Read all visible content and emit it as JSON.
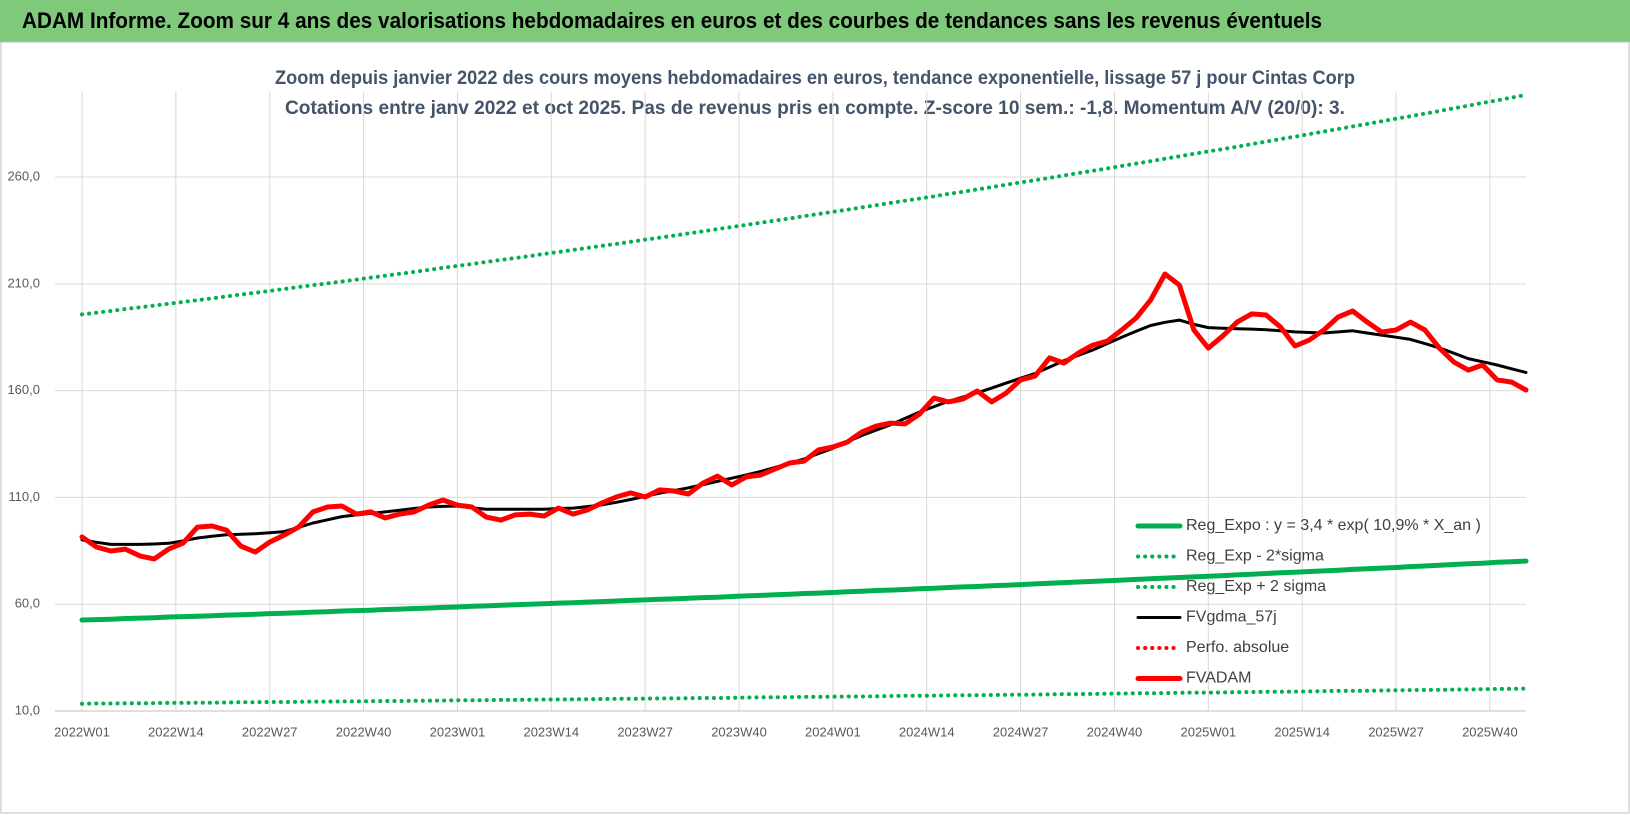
{
  "header": {
    "title": "ADAM Informe. Zoom sur 4 ans des valorisations hebdomadaires en euros et des courbes de tendances sans les revenus éventuels"
  },
  "chart_data": {
    "type": "line",
    "title": "Zoom depuis janvier 2022 des cours moyens hebdomadaires en euros, tendance exponentielle, lissage 57 j pour Cintas Corp",
    "subtitle": "Cotations entre janv 2022 et oct 2025. Pas de revenus pris en compte. Z-score 10 sem.: -1,8.  Momentum A/V (20/0): 3.",
    "grid": true,
    "legend": "lower right",
    "xlim": [
      0,
      200
    ],
    "ylim": [
      10,
      300
    ],
    "xticks": [
      {
        "value": 0,
        "label": "2022W01"
      },
      {
        "value": 13,
        "label": "2022W14"
      },
      {
        "value": 26,
        "label": "2022W27"
      },
      {
        "value": 39,
        "label": "2022W40"
      },
      {
        "value": 52,
        "label": "2023W01"
      },
      {
        "value": 65,
        "label": "2023W14"
      },
      {
        "value": 78,
        "label": "2023W27"
      },
      {
        "value": 91,
        "label": "2023W40"
      },
      {
        "value": 104,
        "label": "2024W01"
      },
      {
        "value": 117,
        "label": "2024W14"
      },
      {
        "value": 130,
        "label": "2024W27"
      },
      {
        "value": 143,
        "label": "2024W40"
      },
      {
        "value": 156,
        "label": "2025W01"
      },
      {
        "value": 169,
        "label": "2025W14"
      },
      {
        "value": 182,
        "label": "2025W27"
      },
      {
        "value": 195,
        "label": "2025W40"
      }
    ],
    "yticks": [
      {
        "value": 10,
        "label": "10,0"
      },
      {
        "value": 60,
        "label": "60,0"
      },
      {
        "value": 110,
        "label": "110,0"
      },
      {
        "value": 160,
        "label": "160,0"
      },
      {
        "value": 210,
        "label": "210,0"
      },
      {
        "value": 260,
        "label": "260,0"
      }
    ],
    "x": [
      0,
      2,
      4,
      6,
      8,
      10,
      12,
      14,
      16,
      18,
      20,
      22,
      24,
      26,
      28,
      30,
      32,
      34,
      36,
      38,
      40,
      42,
      44,
      46,
      48,
      50,
      52,
      54,
      56,
      58,
      60,
      62,
      64,
      66,
      68,
      70,
      72,
      74,
      76,
      78,
      80,
      82,
      84,
      86,
      88,
      90,
      92,
      94,
      96,
      98,
      100,
      102,
      104,
      106,
      108,
      110,
      112,
      114,
      116,
      118,
      120,
      122,
      124,
      126,
      128,
      130,
      132,
      134,
      136,
      138,
      140,
      142,
      144,
      146,
      148,
      150,
      152,
      154,
      156,
      158,
      160,
      162,
      164,
      166,
      168,
      170,
      172,
      174,
      176,
      178,
      180,
      182,
      184,
      186,
      188,
      190,
      192,
      194,
      196,
      198,
      200
    ],
    "series": [
      {
        "name": "Reg_Expo : y = 3,4 * exp( 10,9% * X_an )",
        "color": "#00b050",
        "style": "solid",
        "values": [
          52.6,
          52.8,
          53.0,
          53.3,
          53.5,
          53.7,
          54.0,
          54.2,
          54.4,
          54.6,
          54.9,
          55.1,
          55.3,
          55.6,
          55.8,
          56.0,
          56.3,
          56.5,
          56.8,
          57.0,
          57.2,
          57.5,
          57.7,
          58.0,
          58.2,
          58.5,
          58.7,
          59.0,
          59.2,
          59.5,
          59.7,
          60.0,
          60.2,
          60.5,
          60.7,
          61.0,
          61.2,
          61.5,
          61.8,
          62.0,
          62.3,
          62.5,
          62.8,
          63.1,
          63.3,
          63.6,
          63.9,
          64.1,
          64.4,
          64.7,
          65.0,
          65.2,
          65.5,
          65.8,
          66.1,
          66.4,
          66.6,
          66.9,
          67.2,
          67.5,
          67.8,
          68.1,
          68.3,
          68.6,
          68.9,
          69.2,
          69.5,
          69.8,
          70.1,
          70.4,
          70.7,
          71.0,
          71.3,
          71.6,
          71.9,
          72.2,
          72.5,
          72.8,
          73.1,
          73.4,
          73.7,
          74.0,
          74.4,
          74.7,
          75.0,
          75.3,
          75.6,
          75.9,
          76.3,
          76.6,
          76.9,
          77.2,
          77.6,
          77.9,
          78.2,
          78.6,
          78.9,
          79.2,
          79.6,
          79.9,
          80.2
        ]
      },
      {
        "name": "Reg_Exp - 2*sigma",
        "color": "#00b050",
        "style": "dotted",
        "values": [
          13.4,
          13.5,
          13.5,
          13.6,
          13.6,
          13.7,
          13.8,
          13.8,
          13.9,
          13.9,
          14.0,
          14.1,
          14.1,
          14.2,
          14.2,
          14.3,
          14.4,
          14.4,
          14.5,
          14.5,
          14.6,
          14.7,
          14.7,
          14.8,
          14.8,
          14.9,
          15.0,
          15.0,
          15.1,
          15.2,
          15.2,
          15.3,
          15.4,
          15.4,
          15.5,
          15.5,
          15.6,
          15.7,
          15.7,
          15.8,
          15.9,
          15.9,
          16.0,
          16.1,
          16.1,
          16.2,
          16.3,
          16.4,
          16.4,
          16.5,
          16.6,
          16.6,
          16.7,
          16.8,
          16.8,
          16.9,
          17.0,
          17.1,
          17.1,
          17.2,
          17.3,
          17.4,
          17.4,
          17.5,
          17.6,
          17.6,
          17.7,
          17.8,
          17.9,
          17.9,
          18.0,
          18.1,
          18.2,
          18.3,
          18.3,
          18.4,
          18.5,
          18.6,
          18.6,
          18.7,
          18.8,
          18.9,
          19.0,
          19.0,
          19.1,
          19.2,
          19.3,
          19.4,
          19.4,
          19.5,
          19.6,
          19.7,
          19.8,
          19.9,
          19.9,
          20.0,
          20.1,
          20.2,
          20.3,
          20.4,
          20.5
        ]
      },
      {
        "name": "Reg_Exp + 2 sigma",
        "color": "#00b050",
        "style": "dotted",
        "values": [
          195.7,
          196.5,
          197.3,
          198.2,
          199.0,
          199.8,
          200.7,
          201.5,
          202.4,
          203.2,
          204.1,
          205.0,
          205.8,
          206.7,
          207.6,
          208.5,
          209.4,
          210.2,
          211.1,
          212.0,
          212.9,
          213.8,
          214.7,
          215.6,
          216.5,
          217.5,
          218.4,
          219.3,
          220.2,
          221.2,
          222.1,
          223.0,
          224.0,
          224.9,
          225.9,
          226.8,
          227.8,
          228.7,
          229.7,
          230.7,
          231.6,
          232.6,
          233.6,
          234.6,
          235.6,
          236.6,
          237.6,
          238.6,
          239.6,
          240.6,
          241.7,
          242.7,
          243.7,
          244.7,
          245.8,
          246.8,
          247.9,
          248.9,
          249.9,
          251.0,
          252.1,
          253.1,
          254.2,
          255.3,
          256.4,
          257.5,
          258.5,
          259.6,
          260.7,
          261.9,
          262.9,
          264.0,
          265.2,
          266.3,
          267.4,
          268.6,
          269.7,
          270.9,
          272.0,
          273.1,
          274.2,
          275.4,
          276.6,
          277.8,
          278.9,
          280.1,
          281.3,
          282.5,
          283.7,
          284.9,
          286.1,
          287.3,
          288.5,
          289.7,
          290.9,
          292.2,
          293.4,
          294.7,
          295.9,
          297.2,
          298.4
        ]
      },
      {
        "name": "FVgdma_57j",
        "color": "#000000",
        "style": "solid",
        "values": [
          90.1,
          89,
          88,
          88,
          88,
          88.2,
          88.5,
          89.7,
          91,
          91.8,
          92.5,
          92.8,
          93,
          93.5,
          94,
          96,
          98,
          99.5,
          101,
          101.8,
          102.5,
          103.2,
          104,
          104.8,
          105.5,
          105.8,
          106,
          105.2,
          104.5,
          104.5,
          104.5,
          104.5,
          104.5,
          104.8,
          105,
          105.7,
          106.5,
          107.7,
          109,
          110.5,
          112,
          113.2,
          114.5,
          116,
          117.5,
          119,
          120.5,
          122.2,
          124,
          126,
          128,
          130.5,
          133,
          136,
          139,
          141.5,
          144,
          147,
          150,
          152.5,
          155,
          157,
          159,
          161.2,
          163.5,
          165.8,
          168,
          171,
          174,
          176.5,
          179,
          182,
          185,
          187.8,
          190.5,
          192,
          193,
          191,
          189.5,
          189.2,
          189,
          188.8,
          188.5,
          188,
          187.5,
          187.2,
          187,
          187.5,
          188,
          187,
          186,
          185,
          184,
          182,
          180,
          177.5,
          175,
          173.5,
          172,
          170.2,
          168.5
        ]
      },
      {
        "name": "Perfo. absolue",
        "color": "#ff0000",
        "style": "dotted",
        "values": [
          null,
          null,
          null,
          null,
          null,
          null,
          null,
          null,
          null,
          null,
          null,
          null,
          null,
          null,
          null,
          null,
          null,
          null,
          null,
          null,
          null,
          null,
          null,
          null,
          null,
          null,
          null,
          null,
          null,
          null,
          null,
          null,
          null,
          null,
          null,
          null,
          null,
          null,
          null,
          null,
          null,
          null,
          null,
          null,
          null,
          null,
          null,
          null,
          null,
          null,
          null,
          null,
          null,
          null,
          null,
          null,
          null,
          null,
          null,
          null,
          null,
          null,
          null,
          null,
          null,
          null,
          null,
          null,
          null,
          null,
          null,
          null,
          null,
          null,
          null,
          null,
          null,
          null,
          null,
          null,
          null,
          null,
          null,
          null,
          null,
          null,
          null,
          null,
          null,
          null,
          null,
          null,
          null,
          null,
          null,
          null,
          null,
          null,
          null,
          null,
          null
        ]
      },
      {
        "name": "FVADAM",
        "color": "#ff0000",
        "style": "solid",
        "values": [
          91.5,
          86.8,
          84.9,
          85.8,
          82.6,
          81.2,
          85.8,
          88.6,
          96.1,
          96.6,
          94.7,
          87.2,
          84.4,
          89.1,
          92.4,
          96.1,
          103.2,
          105.5,
          106.0,
          102.2,
          103.2,
          100.4,
          102.2,
          103.2,
          106.4,
          108.8,
          106.4,
          105.5,
          100.8,
          99.4,
          101.8,
          102.2,
          101.3,
          105.0,
          102.2,
          104.1,
          107.4,
          110.2,
          112.1,
          110.2,
          113.5,
          113.0,
          111.6,
          116.7,
          120.0,
          115.8,
          119.6,
          120.5,
          123.3,
          126.1,
          127.0,
          132.2,
          133.6,
          135.9,
          140.6,
          143.4,
          144.8,
          144.4,
          149.0,
          156.5,
          154.7,
          156.1,
          159.8,
          154.7,
          158.9,
          165.0,
          166.8,
          175.3,
          172.9,
          177.6,
          181.3,
          183.2,
          188.4,
          194.0,
          202.4,
          214.6,
          209.4,
          188.4,
          179.9,
          185.6,
          192.1,
          195.9,
          195.4,
          189.8,
          180.9,
          183.7,
          188.4,
          194.5,
          197.3,
          192.1,
          187.4,
          188.4,
          192.1,
          188.4,
          179.9,
          173.4,
          169.6,
          172.0,
          165.0,
          164.0,
          160.3
        ]
      }
    ]
  }
}
